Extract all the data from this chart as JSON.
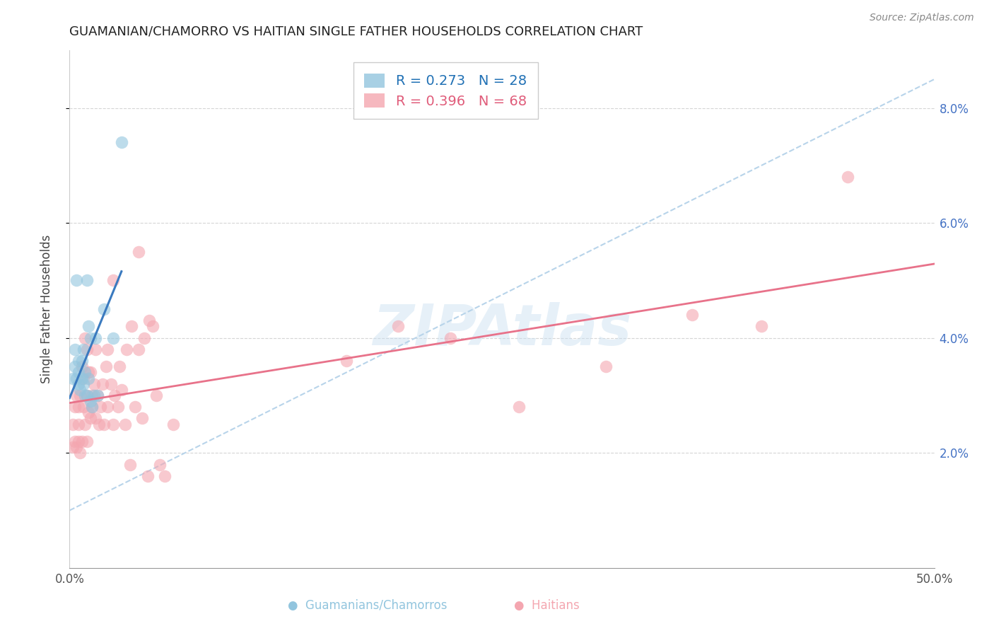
{
  "title": "GUAMANIAN/CHAMORRO VS HAITIAN SINGLE FATHER HOUSEHOLDS CORRELATION CHART",
  "source": "Source: ZipAtlas.com",
  "ylabel": "Single Father Households",
  "xlim": [
    0.0,
    0.5
  ],
  "ylim": [
    0.0,
    0.09
  ],
  "xticks": [
    0.0,
    0.5
  ],
  "xticklabels": [
    "0.0%",
    "50.0%"
  ],
  "yticks": [
    0.02,
    0.04,
    0.06,
    0.08
  ],
  "right_yticklabels": [
    "2.0%",
    "4.0%",
    "6.0%",
    "8.0%"
  ],
  "guamanian_R": 0.273,
  "guamanian_N": 28,
  "haitian_R": 0.396,
  "haitian_N": 68,
  "guamanian_color": "#92c5de",
  "haitian_color": "#f4a6b0",
  "guamanian_line_color": "#3a7abf",
  "haitian_line_color": "#e8728a",
  "dashed_line_color": "#b8d4ea",
  "watermark_text": "ZIPAtlas",
  "legend_label_1": "R = 0.273   N = 28",
  "legend_label_2": "R = 0.396   N = 68",
  "bottom_label_1": "Guamanians/Chamorros",
  "bottom_label_2": "Haitians",
  "guamanian_x": [
    0.002,
    0.003,
    0.003,
    0.004,
    0.004,
    0.005,
    0.005,
    0.005,
    0.006,
    0.007,
    0.007,
    0.008,
    0.008,
    0.009,
    0.009,
    0.01,
    0.01,
    0.011,
    0.011,
    0.012,
    0.012,
    0.013,
    0.014,
    0.015,
    0.016,
    0.02,
    0.025,
    0.03
  ],
  "guamanian_y": [
    0.033,
    0.035,
    0.038,
    0.033,
    0.05,
    0.032,
    0.034,
    0.036,
    0.031,
    0.033,
    0.036,
    0.032,
    0.038,
    0.03,
    0.034,
    0.03,
    0.05,
    0.033,
    0.042,
    0.029,
    0.04,
    0.028,
    0.03,
    0.04,
    0.03,
    0.045,
    0.04,
    0.074
  ],
  "haitian_x": [
    0.002,
    0.002,
    0.003,
    0.003,
    0.004,
    0.004,
    0.005,
    0.005,
    0.005,
    0.006,
    0.006,
    0.007,
    0.007,
    0.008,
    0.008,
    0.009,
    0.009,
    0.01,
    0.01,
    0.01,
    0.011,
    0.011,
    0.012,
    0.012,
    0.013,
    0.013,
    0.014,
    0.015,
    0.015,
    0.016,
    0.017,
    0.018,
    0.019,
    0.02,
    0.021,
    0.022,
    0.022,
    0.024,
    0.025,
    0.025,
    0.026,
    0.028,
    0.029,
    0.03,
    0.032,
    0.033,
    0.035,
    0.036,
    0.038,
    0.04,
    0.04,
    0.042,
    0.043,
    0.045,
    0.046,
    0.048,
    0.05,
    0.052,
    0.055,
    0.06,
    0.16,
    0.19,
    0.22,
    0.26,
    0.31,
    0.36,
    0.4,
    0.45
  ],
  "haitian_y": [
    0.021,
    0.025,
    0.022,
    0.028,
    0.021,
    0.03,
    0.022,
    0.025,
    0.028,
    0.02,
    0.03,
    0.022,
    0.035,
    0.028,
    0.033,
    0.025,
    0.04,
    0.022,
    0.03,
    0.038,
    0.027,
    0.034,
    0.026,
    0.034,
    0.028,
    0.03,
    0.032,
    0.026,
    0.038,
    0.03,
    0.025,
    0.028,
    0.032,
    0.025,
    0.035,
    0.028,
    0.038,
    0.032,
    0.025,
    0.05,
    0.03,
    0.028,
    0.035,
    0.031,
    0.025,
    0.038,
    0.018,
    0.042,
    0.028,
    0.038,
    0.055,
    0.026,
    0.04,
    0.016,
    0.043,
    0.042,
    0.03,
    0.018,
    0.016,
    0.025,
    0.036,
    0.042,
    0.04,
    0.028,
    0.035,
    0.044,
    0.042,
    0.068
  ],
  "guam_line_x0": 0.0,
  "guam_line_y0": 0.03,
  "guam_line_x1": 0.03,
  "guam_line_y1": 0.044,
  "haiti_line_x0": 0.0,
  "haiti_line_y0": 0.028,
  "haiti_line_x1": 0.5,
  "haiti_line_y1": 0.044,
  "dash_line_x0": 0.0,
  "dash_line_y0": 0.01,
  "dash_line_x1": 0.5,
  "dash_line_y1": 0.085
}
